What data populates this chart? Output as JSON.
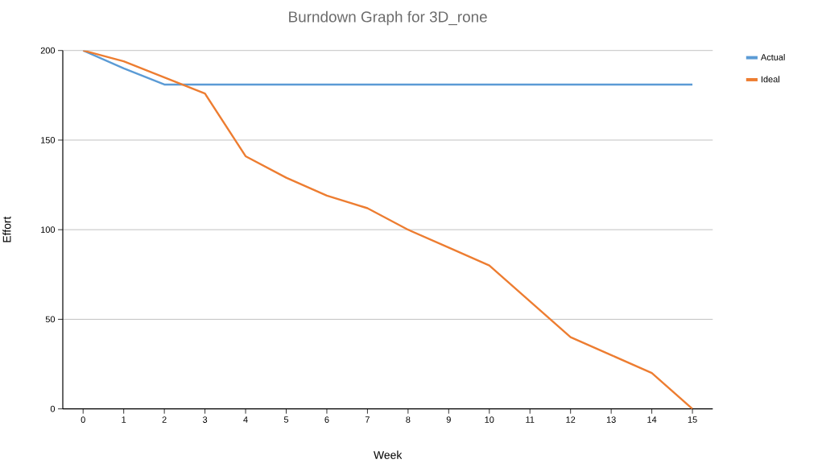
{
  "chart_data": {
    "type": "line",
    "title": "Burndown Graph for 3D_rone",
    "xlabel": "Week",
    "ylabel": "Effort",
    "categories": [
      "0",
      "1",
      "2",
      "3",
      "4",
      "5",
      "6",
      "7",
      "8",
      "9",
      "10",
      "11",
      "12",
      "13",
      "14",
      "15"
    ],
    "series": [
      {
        "name": "Actual",
        "color": "#5b9bd5",
        "values": [
          200,
          190,
          181,
          181,
          181,
          181,
          181,
          181,
          181,
          181,
          181,
          181,
          181,
          181,
          181,
          181
        ]
      },
      {
        "name": "Ideal",
        "color": "#ed7d31",
        "values": [
          200,
          194,
          185,
          176,
          141,
          129,
          119,
          112,
          100,
          90,
          80,
          60,
          40,
          30,
          20,
          0
        ]
      }
    ],
    "ylim": [
      0,
      200
    ],
    "yticks": [
      0,
      50,
      100,
      150,
      200
    ],
    "grid": "y",
    "legend": "top right",
    "marker": "none",
    "line_style": "solid"
  }
}
